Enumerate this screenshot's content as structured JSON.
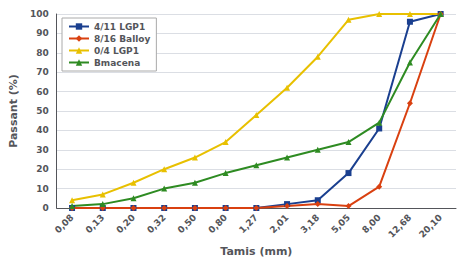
{
  "chart_data": {
    "type": "line",
    "xlabel": "Tamis (mm)",
    "ylabel": "Passant (%)",
    "categories": [
      "0,08",
      "0,13",
      "0,20",
      "0,32",
      "0,50",
      "0,80",
      "1,27",
      "2,01",
      "3,18",
      "5,05",
      "8,00",
      "12,68",
      "20,10"
    ],
    "series": [
      {
        "name": "4/11 LGP1",
        "color": "#1a3f8f",
        "marker": "square",
        "values": [
          0,
          0,
          0,
          0,
          0,
          0,
          0,
          2,
          4,
          18,
          41,
          96,
          100
        ]
      },
      {
        "name": "8/16 Balloy",
        "color": "#d94010",
        "marker": "diamond",
        "values": [
          0,
          0,
          0,
          0,
          0,
          0,
          0,
          1,
          2,
          1,
          11,
          54,
          100
        ]
      },
      {
        "name": "0/4 LGP1",
        "color": "#e8c000",
        "marker": "triangle",
        "values": [
          4,
          7,
          13,
          20,
          26,
          34,
          48,
          62,
          78,
          97,
          100,
          100,
          100
        ]
      },
      {
        "name": "Bmacena",
        "color": "#2e8b22",
        "marker": "triangle",
        "values": [
          1,
          2,
          5,
          10,
          13,
          18,
          22,
          26,
          30,
          34,
          44,
          75,
          100
        ]
      }
    ],
    "ylim": [
      0,
      100
    ],
    "yticks": [
      0,
      10,
      20,
      30,
      40,
      50,
      60,
      70,
      80,
      90,
      100
    ],
    "grid": true,
    "legend": "upper left"
  }
}
